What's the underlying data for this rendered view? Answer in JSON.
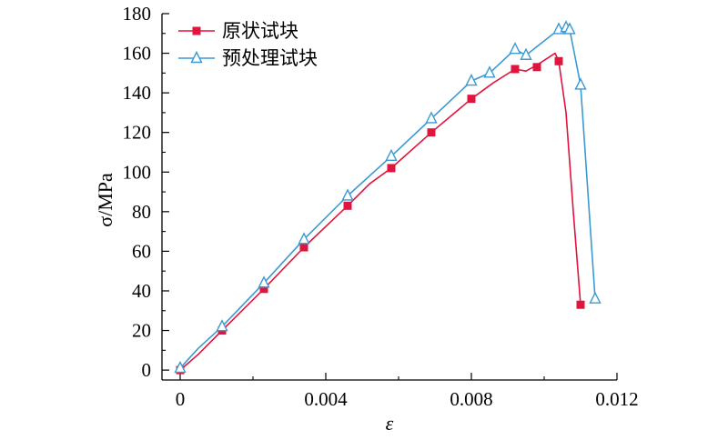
{
  "chart_data": {
    "type": "line",
    "xlabel": "ε",
    "ylabel": "σ/MPa",
    "xlim": [
      -0.0005,
      0.012
    ],
    "ylim": [
      -5,
      180
    ],
    "xticks": [
      0,
      0.004,
      0.008,
      0.012
    ],
    "xtick_labels": [
      "0",
      "0.004",
      "0.008",
      "0.012"
    ],
    "yticks": [
      0,
      20,
      40,
      60,
      80,
      100,
      120,
      140,
      160,
      180
    ],
    "ytick_labels": [
      "0",
      "20",
      "40",
      "60",
      "80",
      "100",
      "120",
      "140",
      "160",
      "180"
    ],
    "grid": false,
    "legend_position": "top-left",
    "series": [
      {
        "name": "原状试块",
        "color": "#e0143c",
        "marker": "square",
        "line": [
          [
            0,
            0
          ],
          [
            0.0005,
            8
          ],
          [
            0.00115,
            20
          ],
          [
            0.0023,
            41
          ],
          [
            0.0034,
            62
          ],
          [
            0.0046,
            83
          ],
          [
            0.0052,
            94
          ],
          [
            0.0058,
            102
          ],
          [
            0.0069,
            120
          ],
          [
            0.008,
            137
          ],
          [
            0.0086,
            145
          ],
          [
            0.0092,
            152
          ],
          [
            0.0095,
            151
          ],
          [
            0.0098,
            154
          ],
          [
            0.0103,
            160
          ],
          [
            0.0104,
            156
          ],
          [
            0.0106,
            130
          ],
          [
            0.0108,
            80
          ],
          [
            0.011,
            33
          ]
        ],
        "markers": [
          [
            0,
            0
          ],
          [
            0.00115,
            20
          ],
          [
            0.0023,
            41
          ],
          [
            0.0034,
            62
          ],
          [
            0.0046,
            83
          ],
          [
            0.0058,
            102
          ],
          [
            0.0069,
            120
          ],
          [
            0.008,
            137
          ],
          [
            0.0092,
            152
          ],
          [
            0.0098,
            153
          ],
          [
            0.0104,
            156
          ],
          [
            0.011,
            33
          ]
        ]
      },
      {
        "name": "预处理试块",
        "color": "#3a9ad3",
        "marker": "triangle",
        "line": [
          [
            0,
            1
          ],
          [
            0.0005,
            11
          ],
          [
            0.00115,
            22
          ],
          [
            0.0023,
            44
          ],
          [
            0.0034,
            66
          ],
          [
            0.0046,
            88
          ],
          [
            0.0058,
            108
          ],
          [
            0.0069,
            127
          ],
          [
            0.008,
            146
          ],
          [
            0.0085,
            150
          ],
          [
            0.0092,
            162
          ],
          [
            0.0095,
            159
          ],
          [
            0.0104,
            172
          ],
          [
            0.0106,
            173
          ],
          [
            0.0107,
            172
          ],
          [
            0.011,
            144
          ],
          [
            0.0114,
            36
          ]
        ],
        "markers": [
          [
            0,
            1
          ],
          [
            0.00115,
            22
          ],
          [
            0.0023,
            44
          ],
          [
            0.0034,
            66
          ],
          [
            0.0046,
            88
          ],
          [
            0.0058,
            108
          ],
          [
            0.0069,
            127
          ],
          [
            0.008,
            146
          ],
          [
            0.0085,
            150
          ],
          [
            0.0092,
            162
          ],
          [
            0.0095,
            159
          ],
          [
            0.0104,
            172
          ],
          [
            0.0106,
            173
          ],
          [
            0.0107,
            172
          ],
          [
            0.011,
            144
          ],
          [
            0.0114,
            36
          ]
        ]
      }
    ]
  }
}
